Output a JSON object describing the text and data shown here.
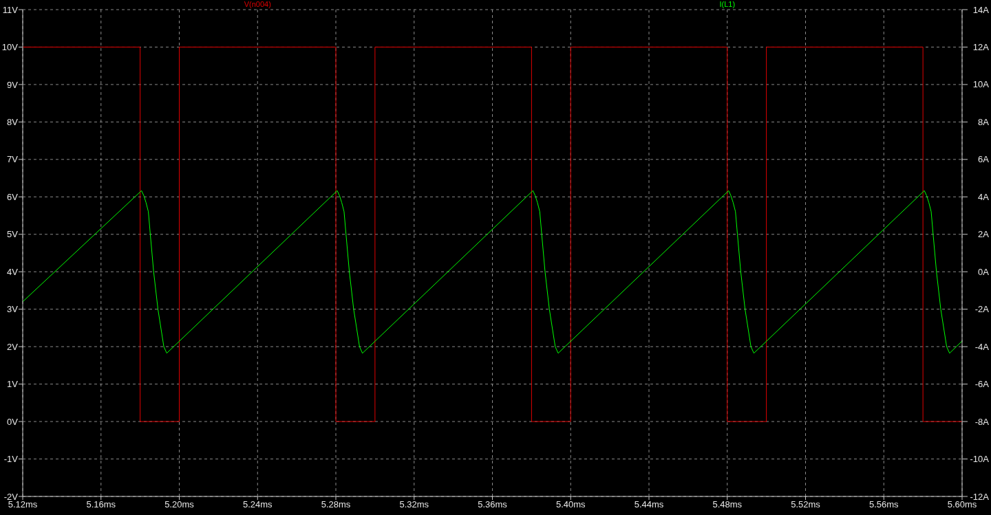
{
  "chart_data": {
    "type": "line",
    "xlim": [
      5.12,
      5.6
    ],
    "xticks": [
      {
        "value": 5.12,
        "label": "5.12ms"
      },
      {
        "value": 5.16,
        "label": "5.16ms"
      },
      {
        "value": 5.2,
        "label": "5.20ms"
      },
      {
        "value": 5.24,
        "label": "5.24ms"
      },
      {
        "value": 5.28,
        "label": "5.28ms"
      },
      {
        "value": 5.32,
        "label": "5.32ms"
      },
      {
        "value": 5.36,
        "label": "5.36ms"
      },
      {
        "value": 5.4,
        "label": "5.40ms"
      },
      {
        "value": 5.44,
        "label": "5.44ms"
      },
      {
        "value": 5.48,
        "label": "5.48ms"
      },
      {
        "value": 5.52,
        "label": "5.52ms"
      },
      {
        "value": 5.56,
        "label": "5.56ms"
      },
      {
        "value": 5.6,
        "label": "5.60ms"
      }
    ],
    "ylim": [
      -2,
      11
    ],
    "yticks": [
      {
        "value": -2,
        "label": "-2V"
      },
      {
        "value": -1,
        "label": "-1V"
      },
      {
        "value": 0,
        "label": "0V"
      },
      {
        "value": 1,
        "label": "1V"
      },
      {
        "value": 2,
        "label": "2V"
      },
      {
        "value": 3,
        "label": "3V"
      },
      {
        "value": 4,
        "label": "4V"
      },
      {
        "value": 5,
        "label": "5V"
      },
      {
        "value": 6,
        "label": "6V"
      },
      {
        "value": 7,
        "label": "7V"
      },
      {
        "value": 8,
        "label": "8V"
      },
      {
        "value": 9,
        "label": "9V"
      },
      {
        "value": 10,
        "label": "10V"
      },
      {
        "value": 11,
        "label": "11V"
      }
    ],
    "y2lim": [
      -12,
      14
    ],
    "y2ticks": [
      {
        "value": -12,
        "label": "-12A"
      },
      {
        "value": -10,
        "label": "-10A"
      },
      {
        "value": -8,
        "label": "-8A"
      },
      {
        "value": -6,
        "label": "-6A"
      },
      {
        "value": -4,
        "label": "-4A"
      },
      {
        "value": -2,
        "label": "-2A"
      },
      {
        "value": 0,
        "label": "0A"
      },
      {
        "value": 2,
        "label": "2A"
      },
      {
        "value": 4,
        "label": "4A"
      },
      {
        "value": 6,
        "label": "6A"
      },
      {
        "value": 8,
        "label": "8A"
      },
      {
        "value": 10,
        "label": "10A"
      },
      {
        "value": 12,
        "label": "12A"
      },
      {
        "value": 14,
        "label": "14A"
      }
    ],
    "grid": true,
    "legend": "top",
    "marker": "none",
    "line_style": "solid",
    "series": [
      {
        "name": "V(n004)",
        "type": "step",
        "color": "#e00000",
        "x": [
          5.12,
          5.18,
          5.2,
          5.28,
          5.3,
          5.38,
          5.4,
          5.48,
          5.5,
          5.58,
          5.6
        ],
        "values": [
          10,
          0,
          10,
          0,
          10,
          0,
          10,
          0,
          10,
          0,
          0
        ]
      },
      {
        "name": "I(L1)",
        "type": "line",
        "axis": "y2",
        "color": "#00ff00",
        "x": [
          5.12,
          5.1807,
          5.1819,
          5.183,
          5.1842,
          5.1852,
          5.1869,
          5.1891,
          5.1921,
          5.1936,
          5.2807,
          5.2819,
          5.283,
          5.2842,
          5.2852,
          5.2869,
          5.2891,
          5.2921,
          5.2936,
          5.3807,
          5.3819,
          5.383,
          5.3842,
          5.3852,
          5.3869,
          5.3891,
          5.3921,
          5.3936,
          5.4807,
          5.4819,
          5.483,
          5.4842,
          5.4852,
          5.4869,
          5.4891,
          5.4921,
          5.4936,
          5.5807,
          5.5819,
          5.583,
          5.5842,
          5.5852,
          5.5869,
          5.5891,
          5.5921,
          5.5936,
          5.6
        ],
        "values": [
          -1.6,
          4.33,
          4.06,
          3.7,
          3.21,
          2,
          0,
          -2,
          -4,
          -4.35,
          4.33,
          4.06,
          3.7,
          3.21,
          2,
          0,
          -2,
          -4,
          -4.35,
          4.33,
          4.06,
          3.7,
          3.21,
          2,
          0,
          -2,
          -4,
          -4.35,
          4.33,
          4.06,
          3.7,
          3.21,
          2,
          0,
          -2,
          -4,
          -4.35,
          4.33,
          4.06,
          3.7,
          3.21,
          2,
          0,
          -2,
          -4,
          -4.35,
          -3.7
        ]
      }
    ]
  }
}
